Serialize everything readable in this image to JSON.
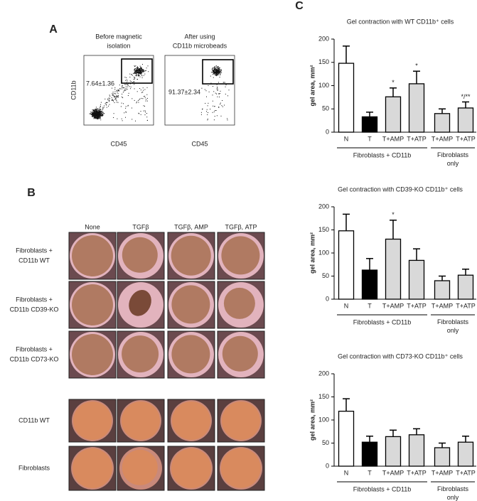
{
  "panel_a": {
    "label": "A",
    "plots": [
      {
        "title": [
          "Before magnetic",
          "isolation"
        ],
        "ylabel": "CD11b",
        "xlabel": "CD45",
        "gate_label": "7.64±1.36"
      },
      {
        "title": [
          "After using",
          "CD11b microbeads"
        ],
        "xlabel": "CD45",
        "gate_label": "91.37±2.34"
      }
    ]
  },
  "panel_b": {
    "label": "B",
    "columns": [
      "None",
      "TGFβ",
      "TGFβ, AMP",
      "TGFβ, ATP"
    ],
    "rows": [
      [
        "Fibroblasts +",
        "CD11b WT"
      ],
      [
        "Fibroblasts +",
        "CD11b CD39-KO"
      ],
      [
        "Fibroblasts +",
        "CD11b CD73-KO"
      ],
      [
        "CD11b WT"
      ],
      [
        "Fibroblasts"
      ]
    ]
  },
  "panel_c": {
    "label": "C"
  },
  "chart_data": [
    {
      "type": "bar",
      "title": "Gel contraction with WT CD11b⁺ cells",
      "ylabel": "gel area, mm²",
      "categories": [
        "N",
        "T",
        "T+AMP",
        "T+ATP",
        "T+AMP",
        "T+ATP"
      ],
      "values": [
        148,
        33,
        76,
        104,
        40,
        52
      ],
      "errors": [
        37,
        10,
        19,
        27,
        10,
        13
      ],
      "annotations": [
        null,
        null,
        "*",
        "*",
        null,
        "*/**"
      ],
      "colors": [
        "#ffffff",
        "#000000",
        "#d9d9d9",
        "#d9d9d9",
        "#d9d9d9",
        "#d9d9d9"
      ],
      "group_labels": [
        "Fibroblasts + CD11b",
        "Fibroblasts only"
      ],
      "ylim": [
        0,
        200
      ],
      "yticks": [
        0,
        50,
        100,
        150,
        200
      ]
    },
    {
      "type": "bar",
      "title": "Gel contraction with CD39-KO CD11b⁺ cells",
      "ylabel": "gel area, mm²",
      "categories": [
        "N",
        "T",
        "T+AMP",
        "T+ATP",
        "T+AMP",
        "T+ATP"
      ],
      "values": [
        148,
        63,
        130,
        84,
        40,
        52
      ],
      "errors": [
        36,
        25,
        41,
        25,
        10,
        13
      ],
      "annotations": [
        null,
        null,
        "*",
        null,
        null,
        null
      ],
      "colors": [
        "#ffffff",
        "#000000",
        "#d9d9d9",
        "#d9d9d9",
        "#d9d9d9",
        "#d9d9d9"
      ],
      "group_labels": [
        "Fibroblasts + CD11b",
        "Fibroblasts only"
      ],
      "ylim": [
        0,
        200
      ],
      "yticks": [
        0,
        50,
        100,
        150,
        200
      ]
    },
    {
      "type": "bar",
      "title": "Gel contraction with CD73-KO CD11b⁺ cells",
      "ylabel": "gel area, mm²",
      "categories": [
        "N",
        "T",
        "T+AMP",
        "T+ATP",
        "T+AMP",
        "T+ATP"
      ],
      "values": [
        119,
        52,
        64,
        68,
        40,
        52
      ],
      "errors": [
        27,
        13,
        14,
        13,
        10,
        13
      ],
      "annotations": [
        null,
        null,
        null,
        null,
        null,
        null
      ],
      "colors": [
        "#ffffff",
        "#000000",
        "#d9d9d9",
        "#d9d9d9",
        "#d9d9d9",
        "#d9d9d9"
      ],
      "group_labels": [
        "Fibroblasts + CD11b",
        "Fibroblasts only"
      ],
      "ylim": [
        0,
        200
      ],
      "yticks": [
        0,
        50,
        100,
        150,
        200
      ]
    }
  ]
}
